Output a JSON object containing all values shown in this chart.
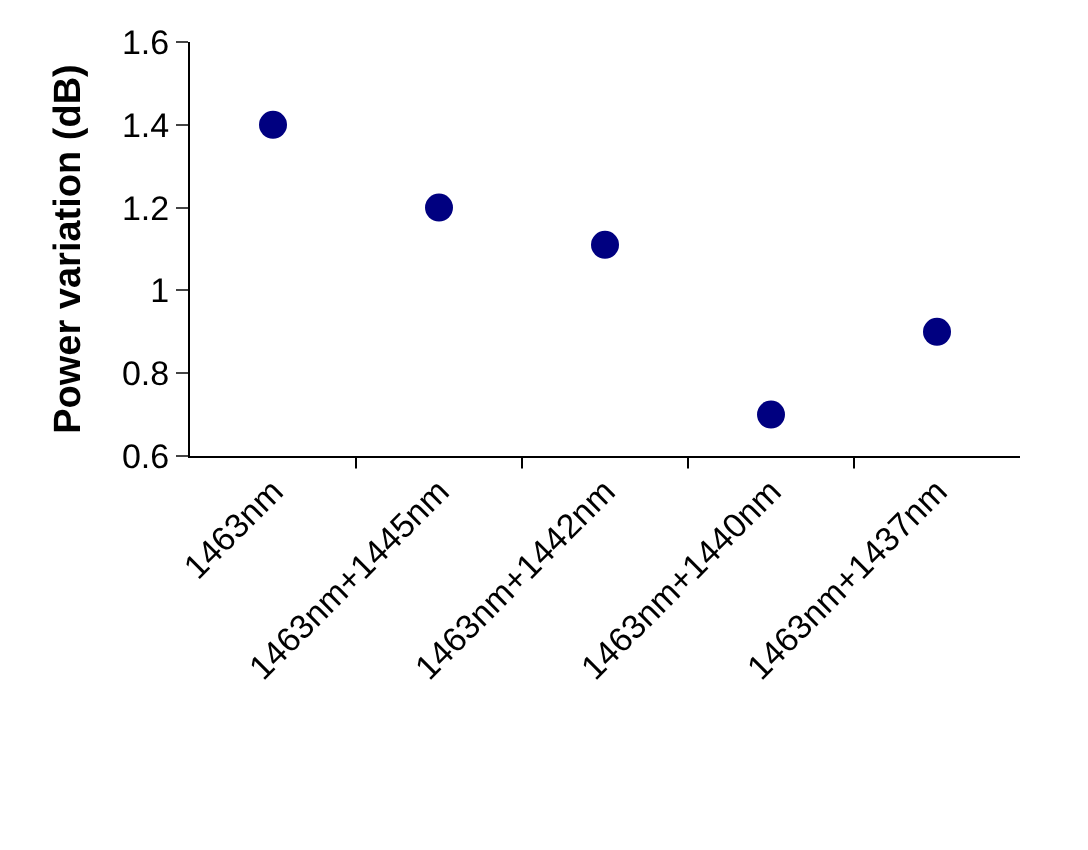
{
  "chart_data": {
    "type": "scatter",
    "ylabel": "Power variation (dB)",
    "categories": [
      "1463nm",
      "1463nm+1445nm",
      "1463nm+1442nm",
      "1463nm+1440nm",
      "1463nm+1437nm"
    ],
    "series": [
      {
        "color": "#000080",
        "values": [
          1.4,
          1.2,
          1.11,
          0.7,
          0.9
        ]
      }
    ],
    "ylim": [
      0.6,
      1.6
    ],
    "yticks": [
      0.6,
      0.8,
      1,
      1.2,
      1.4,
      1.6
    ],
    "marker": "circle"
  }
}
